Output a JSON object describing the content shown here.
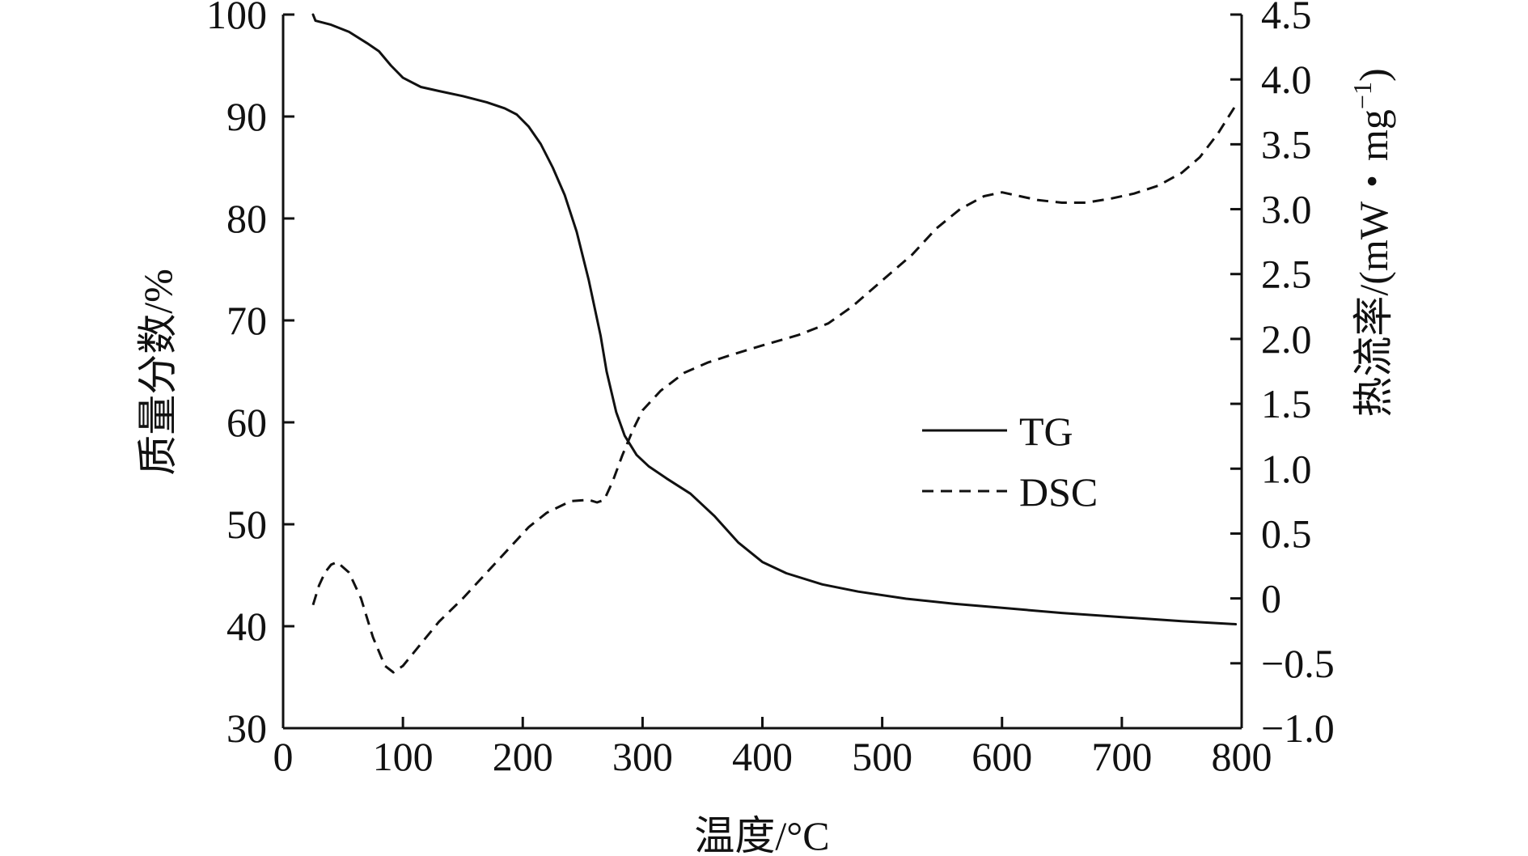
{
  "chart_data": {
    "type": "line",
    "title": "",
    "xlabel": "温度/°C",
    "ylabel_left": "质量分数/%",
    "ylabel_right": "热流率/(mW・mg",
    "ylabel_right_sup": "−1",
    "ylabel_right_close": ")",
    "xlim": [
      0,
      800
    ],
    "ylim_left": [
      30,
      100
    ],
    "ylim_right": [
      -1.0,
      4.5
    ],
    "x_ticks": [
      "0",
      "100",
      "200",
      "300",
      "400",
      "500",
      "600",
      "700",
      "800"
    ],
    "x_tick_values": [
      0,
      100,
      200,
      300,
      400,
      500,
      600,
      700,
      800
    ],
    "y_left_ticks": [
      "30",
      "40",
      "50",
      "60",
      "70",
      "80",
      "90",
      "100"
    ],
    "y_left_tick_values": [
      30,
      40,
      50,
      60,
      70,
      80,
      90,
      100
    ],
    "y_right_ticks": [
      "−1.0",
      "−0.5",
      "0",
      "0.5",
      "1.0",
      "1.5",
      "2.0",
      "2.5",
      "3.0",
      "3.5",
      "4.0",
      "4.5"
    ],
    "y_right_tick_values": [
      -1.0,
      -0.5,
      0,
      0.5,
      1.0,
      1.5,
      2.0,
      2.5,
      3.0,
      3.5,
      4.0,
      4.5
    ],
    "legend": {
      "position": "center-right",
      "entries": [
        "TG",
        "DSC"
      ]
    },
    "grid": false,
    "series": [
      {
        "name": "TG",
        "axis": "left",
        "style": "solid",
        "points": [
          [
            25,
            100
          ],
          [
            27,
            99.4
          ],
          [
            40,
            99.0
          ],
          [
            55,
            98.3
          ],
          [
            70,
            97.2
          ],
          [
            80,
            96.4
          ],
          [
            90,
            95.0
          ],
          [
            100,
            93.8
          ],
          [
            115,
            92.9
          ],
          [
            130,
            92.5
          ],
          [
            150,
            92.0
          ],
          [
            170,
            91.4
          ],
          [
            185,
            90.8
          ],
          [
            195,
            90.2
          ],
          [
            205,
            89.0
          ],
          [
            215,
            87.3
          ],
          [
            225,
            85.0
          ],
          [
            235,
            82.3
          ],
          [
            245,
            78.7
          ],
          [
            255,
            74.0
          ],
          [
            265,
            68.5
          ],
          [
            270,
            65.0
          ],
          [
            278,
            61.0
          ],
          [
            285,
            58.7
          ],
          [
            295,
            56.8
          ],
          [
            305,
            55.7
          ],
          [
            320,
            54.5
          ],
          [
            340,
            53.0
          ],
          [
            360,
            50.8
          ],
          [
            380,
            48.2
          ],
          [
            400,
            46.3
          ],
          [
            420,
            45.2
          ],
          [
            450,
            44.1
          ],
          [
            480,
            43.4
          ],
          [
            520,
            42.7
          ],
          [
            560,
            42.2
          ],
          [
            600,
            41.8
          ],
          [
            650,
            41.3
          ],
          [
            700,
            40.9
          ],
          [
            750,
            40.5
          ],
          [
            795,
            40.2
          ]
        ]
      },
      {
        "name": "DSC",
        "axis": "right",
        "style": "dashed",
        "points": [
          [
            25,
            -0.05
          ],
          [
            30,
            0.1
          ],
          [
            35,
            0.2
          ],
          [
            40,
            0.26
          ],
          [
            45,
            0.28
          ],
          [
            55,
            0.2
          ],
          [
            65,
            0.0
          ],
          [
            75,
            -0.3
          ],
          [
            85,
            -0.52
          ],
          [
            92,
            -0.57
          ],
          [
            100,
            -0.52
          ],
          [
            115,
            -0.35
          ],
          [
            130,
            -0.18
          ],
          [
            150,
            0.0
          ],
          [
            170,
            0.2
          ],
          [
            190,
            0.4
          ],
          [
            205,
            0.55
          ],
          [
            220,
            0.66
          ],
          [
            240,
            0.75
          ],
          [
            255,
            0.76
          ],
          [
            262,
            0.74
          ],
          [
            268,
            0.76
          ],
          [
            275,
            0.9
          ],
          [
            283,
            1.1
          ],
          [
            292,
            1.3
          ],
          [
            300,
            1.45
          ],
          [
            315,
            1.6
          ],
          [
            335,
            1.74
          ],
          [
            355,
            1.82
          ],
          [
            375,
            1.88
          ],
          [
            400,
            1.95
          ],
          [
            430,
            2.03
          ],
          [
            455,
            2.12
          ],
          [
            475,
            2.25
          ],
          [
            500,
            2.45
          ],
          [
            525,
            2.65
          ],
          [
            545,
            2.85
          ],
          [
            565,
            3.0
          ],
          [
            585,
            3.1
          ],
          [
            600,
            3.13
          ],
          [
            615,
            3.1
          ],
          [
            630,
            3.07
          ],
          [
            650,
            3.05
          ],
          [
            670,
            3.05
          ],
          [
            690,
            3.08
          ],
          [
            710,
            3.12
          ],
          [
            730,
            3.18
          ],
          [
            750,
            3.28
          ],
          [
            765,
            3.4
          ],
          [
            780,
            3.58
          ],
          [
            795,
            3.8
          ]
        ]
      }
    ]
  }
}
